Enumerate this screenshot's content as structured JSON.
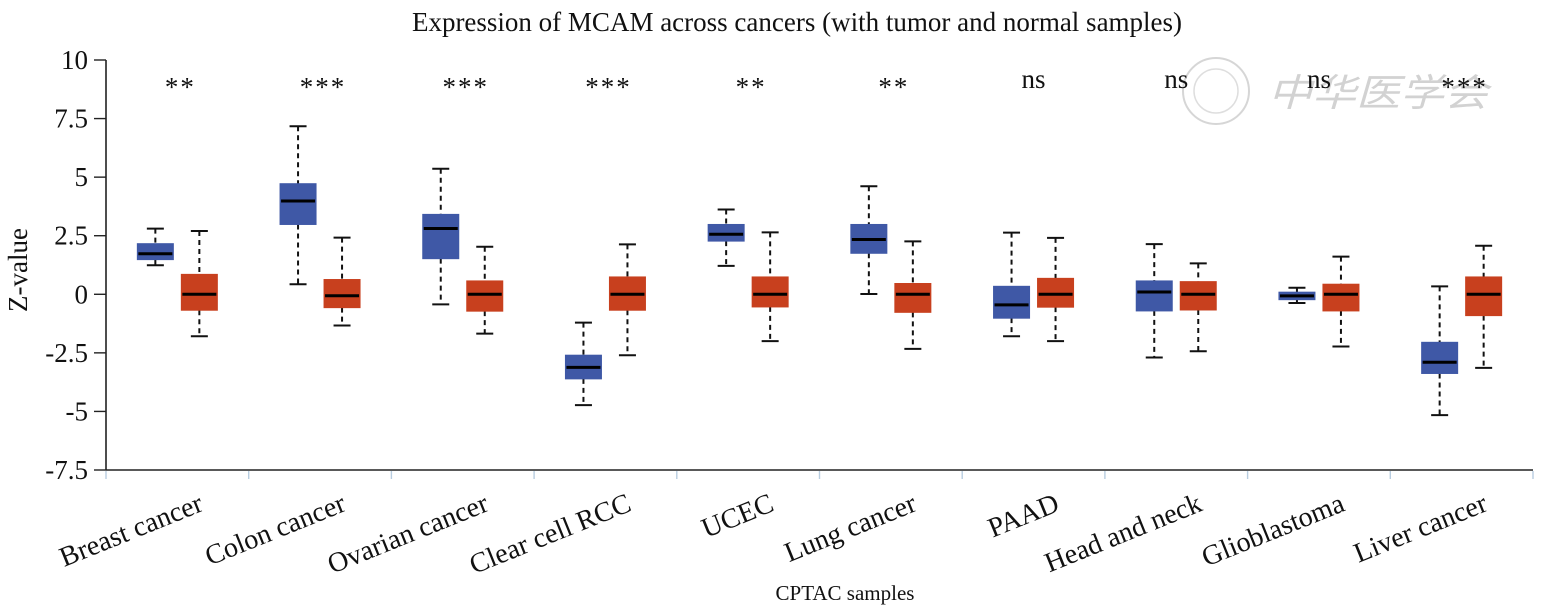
{
  "chart_data": {
    "type": "box",
    "title": "Expression of MCAM across cancers (with tumor and normal samples)",
    "xlabel": "CPTAC samples",
    "ylabel": "Z-value",
    "ylim": [
      -7.5,
      10
    ],
    "yticks": [
      10,
      7.5,
      5,
      2.5,
      0,
      -2.5,
      -5,
      -7.5
    ],
    "ytick_labels": [
      "10",
      "7.5",
      "5",
      "2.5",
      "0",
      "-2.5",
      "-5",
      "-7.5"
    ],
    "grid": false,
    "legend": "none",
    "series_colors": {
      "tumor": "#3f58a6",
      "normal": "#c8401e"
    },
    "series": [
      "tumor",
      "normal"
    ],
    "categories": [
      "Breast cancer",
      "Colon cancer",
      "Ovarian cancer",
      "Clear cell RCC",
      "UCEC",
      "Lung cancer",
      "PAAD",
      "Head and neck",
      "Glioblastoma",
      "Liver cancer"
    ],
    "significance": [
      "**",
      "***",
      "***",
      "***",
      "**",
      "**",
      "ns",
      "ns",
      "ns",
      "***"
    ],
    "boxes": [
      {
        "category": "Breast cancer",
        "tumor": {
          "whisker_low": 1.24,
          "q1": 1.48,
          "median": 1.73,
          "q3": 2.16,
          "whisker_high": 2.8
        },
        "normal": {
          "whisker_low": -1.79,
          "q1": -0.68,
          "median": 0.0,
          "q3": 0.85,
          "whisker_high": 2.7
        }
      },
      {
        "category": "Colon cancer",
        "tumor": {
          "whisker_low": 0.43,
          "q1": 2.98,
          "median": 3.98,
          "q3": 4.72,
          "whisker_high": 7.17
        },
        "normal": {
          "whisker_low": -1.33,
          "q1": -0.57,
          "median": -0.06,
          "q3": 0.63,
          "whisker_high": 2.42
        }
      },
      {
        "category": "Ovarian cancer",
        "tumor": {
          "whisker_low": -0.43,
          "q1": 1.52,
          "median": 2.81,
          "q3": 3.41,
          "whisker_high": 5.36
        },
        "normal": {
          "whisker_low": -1.68,
          "q1": -0.72,
          "median": 0.0,
          "q3": 0.57,
          "whisker_high": 2.03
        }
      },
      {
        "category": "Clear cell RCC",
        "tumor": {
          "whisker_low": -4.73,
          "q1": -3.61,
          "median": -3.12,
          "q3": -2.6,
          "whisker_high": -1.21
        },
        "normal": {
          "whisker_low": -2.6,
          "q1": -0.68,
          "median": 0.0,
          "q3": 0.74,
          "whisker_high": 2.13
        }
      },
      {
        "category": "UCEC",
        "tumor": {
          "whisker_low": 1.21,
          "q1": 2.27,
          "median": 2.56,
          "q3": 2.98,
          "whisker_high": 3.62
        },
        "normal": {
          "whisker_low": -2.0,
          "q1": -0.54,
          "median": 0.0,
          "q3": 0.74,
          "whisker_high": 2.64
        }
      },
      {
        "category": "Lung cancer",
        "tumor": {
          "whisker_low": 0.01,
          "q1": 1.75,
          "median": 2.34,
          "q3": 2.98,
          "whisker_high": 4.61
        },
        "normal": {
          "whisker_low": -2.33,
          "q1": -0.77,
          "median": 0.0,
          "q3": 0.46,
          "whisker_high": 2.26
        }
      },
      {
        "category": "PAAD",
        "tumor": {
          "whisker_low": -1.79,
          "q1": -1.02,
          "median": -0.45,
          "q3": 0.34,
          "whisker_high": 2.63
        },
        "normal": {
          "whisker_low": -2.0,
          "q1": -0.55,
          "median": 0.0,
          "q3": 0.68,
          "whisker_high": 2.41
        }
      },
      {
        "category": "Head and neck",
        "tumor": {
          "whisker_low": -2.7,
          "q1": -0.71,
          "median": 0.1,
          "q3": 0.57,
          "whisker_high": 2.14
        },
        "normal": {
          "whisker_low": -2.43,
          "q1": -0.67,
          "median": 0.0,
          "q3": 0.54,
          "whisker_high": 1.32
        }
      },
      {
        "category": "Glioblastoma",
        "tumor": {
          "whisker_low": -0.37,
          "q1": -0.23,
          "median": -0.07,
          "q3": 0.09,
          "whisker_high": 0.28
        },
        "normal": {
          "whisker_low": -2.23,
          "q1": -0.71,
          "median": 0.0,
          "q3": 0.43,
          "whisker_high": 1.61
        }
      },
      {
        "category": "Liver cancer",
        "tumor": {
          "whisker_low": -5.16,
          "q1": -3.38,
          "median": -2.9,
          "q3": -2.05,
          "whisker_high": 0.34
        },
        "normal": {
          "whisker_low": -3.14,
          "q1": -0.91,
          "median": 0.0,
          "q3": 0.74,
          "whisker_high": 2.07
        }
      }
    ]
  },
  "watermark": {
    "text": "中华医学会"
  }
}
